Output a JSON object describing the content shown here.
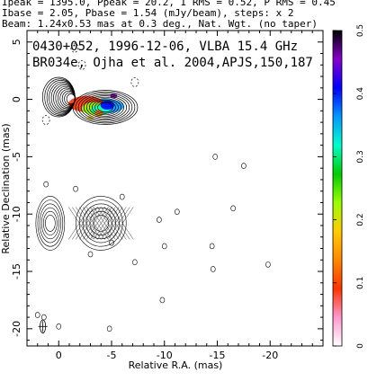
{
  "header": {
    "line1": "Ipeak = 1395.0, Ppeak = 20.2, I RMS = 0.52, P RMS = 0.45",
    "line2": "Ibase = 2.05, Pbase = 1.54 (mJy/beam), steps: x 2",
    "line3": "Beam: 1.24x0.53 mas at 0.3 deg., Nat. Wgt. (no taper)"
  },
  "chart_data": {
    "type": "contour",
    "annotation_line1": "0430+052, 1996-12-06, VLBA 15.4 GHz",
    "annotation_line2": "BR034e, Ojha et al. 2004,APJS,150,187",
    "xlabel": "Relative R.A. (mas)",
    "ylabel": "Relative Declination (mas)",
    "xlim": [
      3,
      -25
    ],
    "ylim": [
      -21.5,
      6
    ],
    "x_ticks": [
      0,
      -5,
      -10,
      -15,
      -20
    ],
    "y_ticks": [
      5,
      0,
      -5,
      -10,
      -15,
      -20
    ],
    "colorbar": {
      "range": [
        0,
        0.5
      ],
      "ticks": [
        0,
        0.1,
        0.2,
        0.3,
        0.4,
        0.5
      ],
      "colors": [
        "#ffffff",
        "#ff99cc",
        "#ff3300",
        "#ff8800",
        "#ffcc00",
        "#99ff00",
        "#00cc00",
        "#00ffcc",
        "#0099ff",
        "#0000ff",
        "#8800cc",
        "#000000"
      ]
    },
    "beam": {
      "major_mas": 1.24,
      "minor_mas": 0.53,
      "pa_deg": 0.3
    },
    "total_intensity_source": {
      "core_x": 0,
      "core_y": 0.2,
      "jet_x": -4,
      "jet_y": -0.5
    },
    "polarization_source": {
      "core_x": 0.8,
      "core_y": -10.8,
      "jet_x": -4,
      "jet_y": -10.8
    }
  }
}
